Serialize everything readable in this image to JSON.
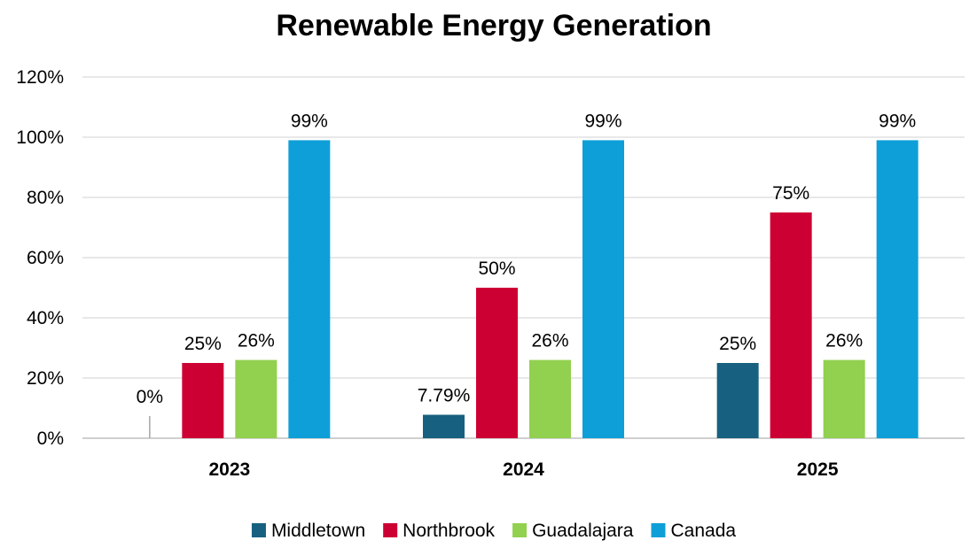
{
  "chart_data": {
    "type": "bar",
    "title": "Renewable Energy Generation",
    "xlabel": "",
    "ylabel": "",
    "categories": [
      "2023",
      "2024",
      "2025"
    ],
    "ylim": [
      0,
      1.2
    ],
    "yticks": [
      {
        "value": 0,
        "label": "0%"
      },
      {
        "value": 0.2,
        "label": "20%"
      },
      {
        "value": 0.4,
        "label": "40%"
      },
      {
        "value": 0.6,
        "label": "60%"
      },
      {
        "value": 0.8,
        "label": "80%"
      },
      {
        "value": 1.0,
        "label": "100%"
      },
      {
        "value": 1.2,
        "label": "120%"
      }
    ],
    "grid": true,
    "legend_position": "bottom",
    "series": [
      {
        "name": "Middletown",
        "color": "#17607f",
        "values": [
          0,
          0.0779,
          0.25
        ],
        "labels": [
          "0%",
          "7.79%",
          "25%"
        ]
      },
      {
        "name": "Northbrook",
        "color": "#cc0033",
        "values": [
          0.25,
          0.5,
          0.75
        ],
        "labels": [
          "25%",
          "50%",
          "75%"
        ]
      },
      {
        "name": "Guadalajara",
        "color": "#92d050",
        "values": [
          0.26,
          0.26,
          0.26
        ],
        "labels": [
          "26%",
          "26%",
          "26%"
        ]
      },
      {
        "name": "Canada",
        "color": "#0e9fd8",
        "values": [
          0.99,
          0.99,
          0.99
        ],
        "labels": [
          "99%",
          "99%",
          "99%"
        ]
      }
    ]
  }
}
